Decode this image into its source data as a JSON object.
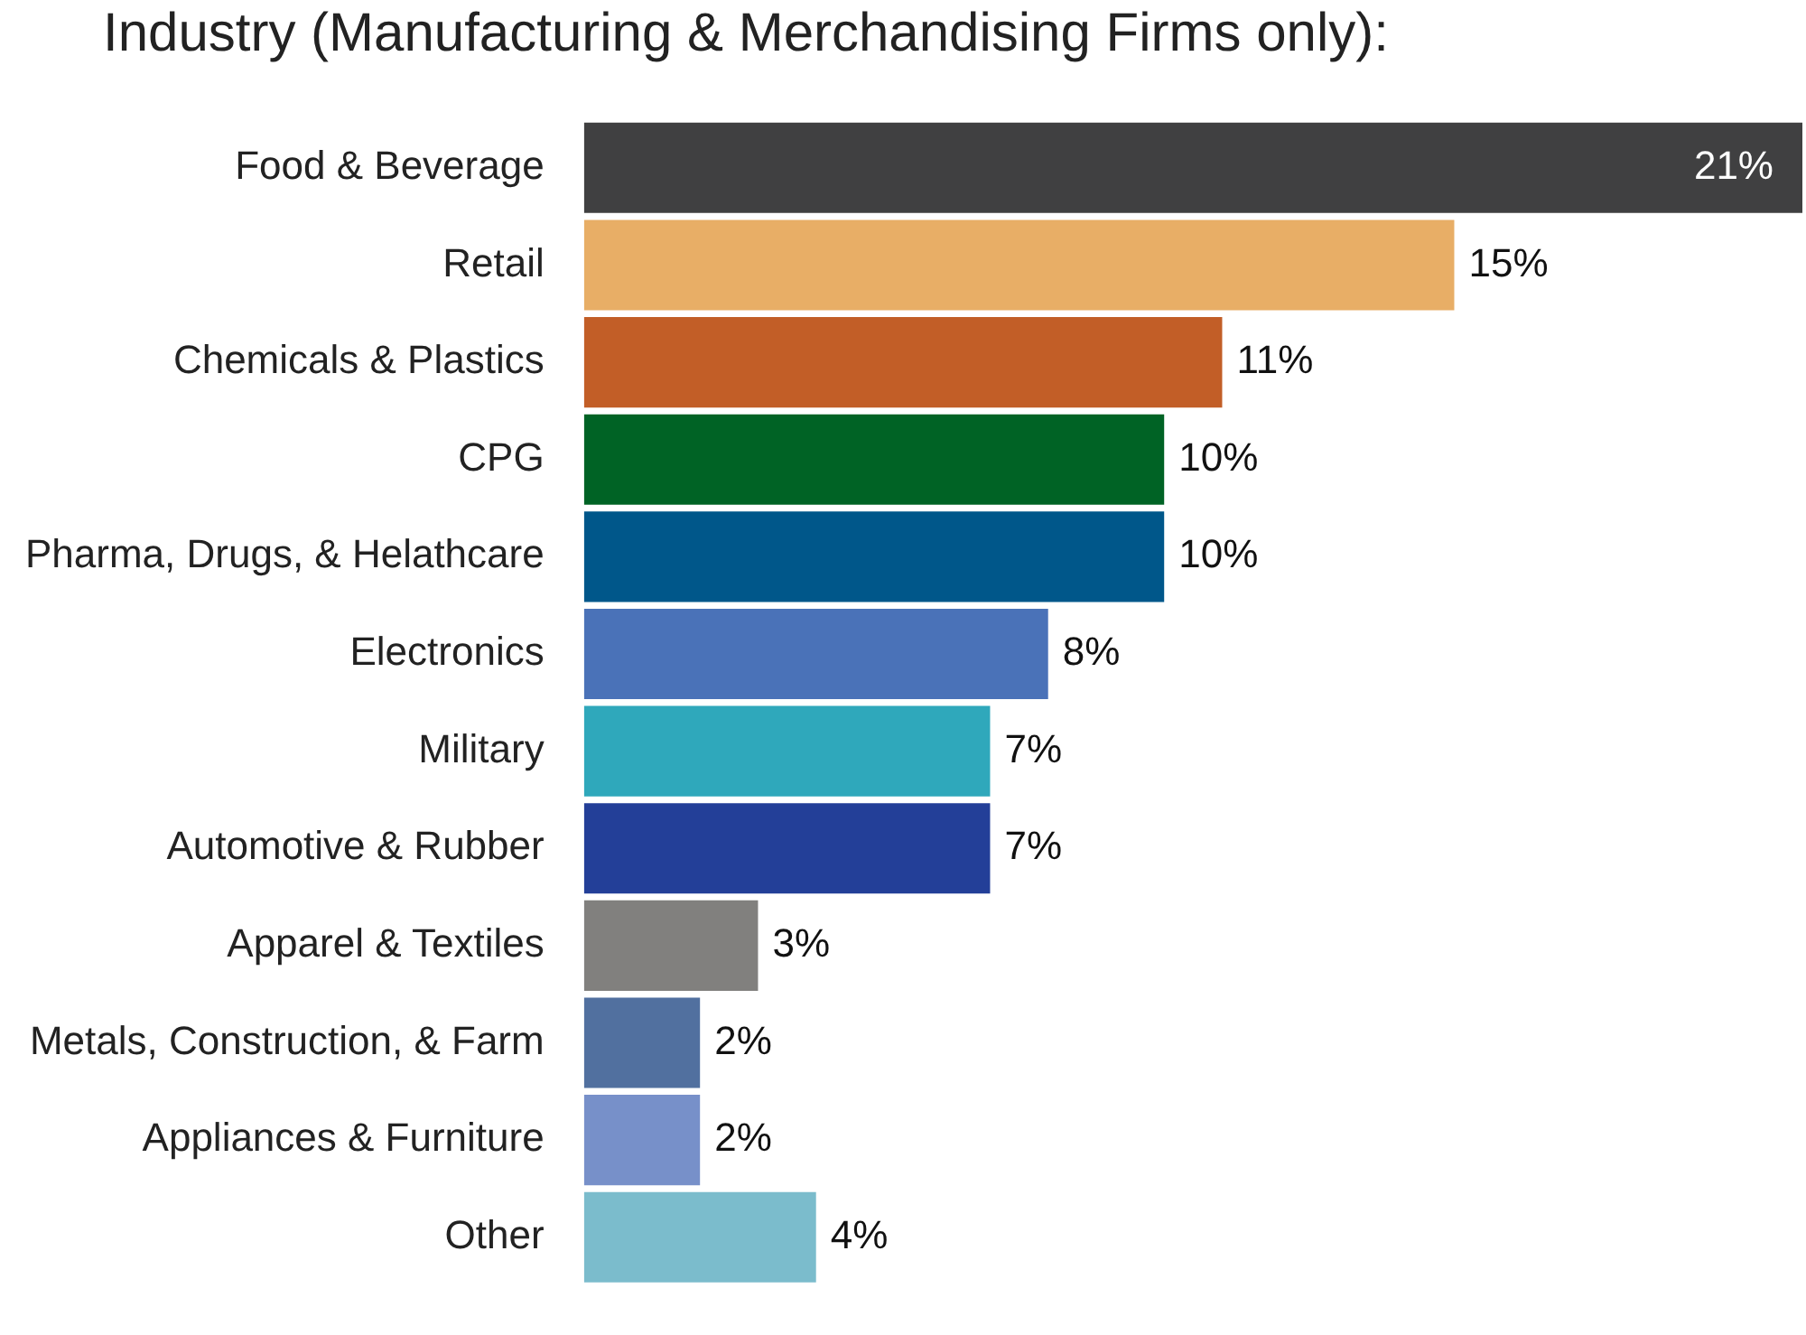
{
  "chart_data": {
    "type": "bar",
    "orientation": "horizontal",
    "title": "Industry (Manufacturing & Merchandising Firms only):",
    "categories": [
      "Food & Beverage",
      "Retail",
      "Chemicals & Plastics",
      "CPG",
      "Pharma, Drugs, & Helathcare",
      "Electronics",
      "Military",
      "Automotive & Rubber",
      "Apparel & Textiles",
      "Metals, Construction, & Farm",
      "Appliances & Furniture",
      "Other"
    ],
    "values": [
      21,
      15,
      11,
      10,
      10,
      8,
      7,
      7,
      3,
      2,
      2,
      4
    ],
    "value_labels": [
      "21%",
      "15%",
      "11%",
      "10%",
      "10%",
      "8%",
      "7%",
      "7%",
      "3%",
      "2%",
      "2%",
      "4%"
    ],
    "colors": [
      "#404041",
      "#e8ae66",
      "#c25e27",
      "#006325",
      "#00578a",
      "#4a72b8",
      "#2fa8bb",
      "#233f98",
      "#81807e",
      "#51709f",
      "#7790c9",
      "#7bbccc"
    ],
    "legend": false
  }
}
